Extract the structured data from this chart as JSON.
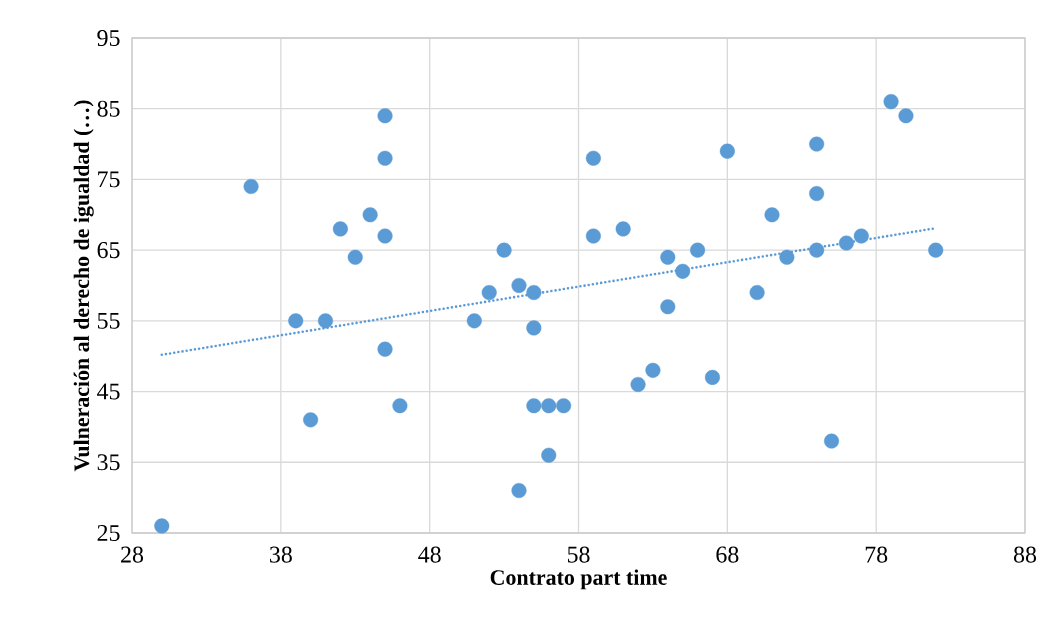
{
  "chart_data": {
    "type": "scatter",
    "xlabel": "Contrato part time",
    "ylabel": "Vulneración al derecho de igualdad (…)",
    "xlim": [
      28,
      88
    ],
    "ylim": [
      25,
      95
    ],
    "xticks": [
      28,
      38,
      48,
      58,
      68,
      78,
      88
    ],
    "yticks": [
      25,
      35,
      45,
      55,
      65,
      75,
      85,
      95
    ],
    "grid": true,
    "marker": "circle",
    "series": [
      {
        "color": "#5b9bd5",
        "x": [
          30,
          36,
          39,
          40,
          41,
          42,
          43,
          44,
          45,
          45,
          45,
          45,
          46,
          51,
          52,
          53,
          54,
          54,
          55,
          55,
          55,
          56,
          56,
          57,
          59,
          59,
          61,
          62,
          63,
          64,
          64,
          65,
          66,
          67,
          68,
          70,
          71,
          72,
          74,
          74,
          74,
          75,
          76,
          77,
          79,
          80,
          82
        ],
        "values": [
          26,
          74,
          55,
          41,
          55,
          68,
          64,
          70,
          84,
          78,
          67,
          51,
          43,
          55,
          59,
          65,
          60,
          31,
          59,
          54,
          43,
          43,
          36,
          43,
          78,
          67,
          68,
          46,
          48,
          64,
          57,
          62,
          65,
          47,
          79,
          59,
          70,
          64,
          80,
          73,
          65,
          38,
          66,
          67,
          86,
          84,
          65
        ]
      },
      {
        "type": "line",
        "color": "#5b9bd5",
        "line_style": "dotted",
        "marker": "none",
        "x": [
          30,
          82
        ],
        "values": [
          50.2,
          68.1
        ]
      }
    ]
  }
}
